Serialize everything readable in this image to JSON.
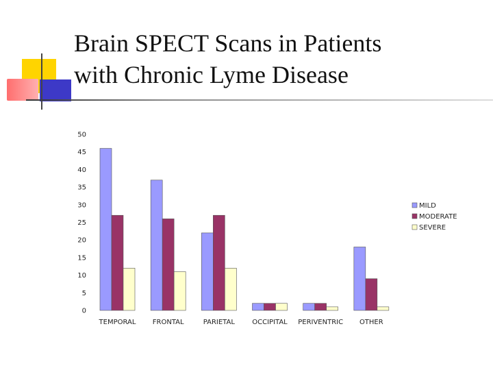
{
  "title": {
    "line1": "Brain SPECT Scans in Patients",
    "line2": "with Chronic Lyme Disease"
  },
  "colors": {
    "mild": "#9a9aff",
    "moderate": "#993366",
    "severe": "#ffffcc"
  },
  "chart_data": {
    "type": "bar",
    "categories": [
      "TEMPORAL",
      "FRONTAL",
      "PARIETAL",
      "OCCIPITAL",
      "PERIVENTRIC",
      "OTHER"
    ],
    "series": [
      {
        "name": "MILD",
        "values": [
          46,
          37,
          22,
          2,
          2,
          18
        ]
      },
      {
        "name": "MODERATE",
        "values": [
          27,
          26,
          27,
          2,
          2,
          9
        ]
      },
      {
        "name": "SEVERE",
        "values": [
          12,
          11,
          12,
          2,
          1,
          1
        ]
      }
    ],
    "ylim": [
      0,
      50
    ],
    "yticks": [
      "0",
      "5",
      "10",
      "15",
      "20",
      "25",
      "30",
      "35",
      "40",
      "45",
      "50"
    ],
    "legend_position": "right",
    "grid": false
  }
}
